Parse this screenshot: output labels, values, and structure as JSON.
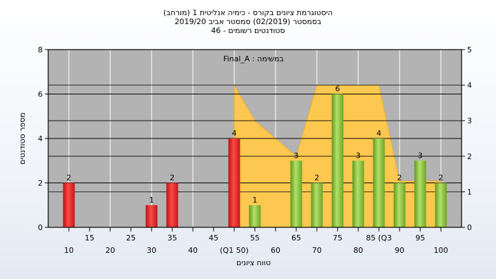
{
  "chart_data": {
    "type": "bar",
    "title_lines": [
      "היסטוגרמת ציונים בקורס - כימיה אנליטית 1 (מורחב)",
      "בסמסטר  (02/2019)  סמסטר אביב 2019/20",
      "סטודנטים רשומים - 46"
    ],
    "annotation": "במשימה : Final_A",
    "xlabel": "טווח ציונים",
    "ylabel": "מספר סטודנטים",
    "ylim": [
      0,
      8
    ],
    "y_ticks": [
      "0",
      "2",
      "4",
      "6",
      "8"
    ],
    "y2lim": [
      0,
      5
    ],
    "y2_ticks": [
      "0",
      "1",
      "2",
      "3",
      "4",
      "5"
    ],
    "x_ticks_lower": [
      "10",
      "20",
      "30",
      "40",
      "(Q1 50)",
      "60",
      "70",
      "80",
      "90",
      "100"
    ],
    "x_ticks_upper": [
      "15",
      "25",
      "35",
      "45",
      "55",
      "65",
      "75",
      "85 (Q3",
      "95"
    ],
    "bars": [
      {
        "x": 10,
        "value": 2,
        "label": "2",
        "color": "red"
      },
      {
        "x": 30,
        "value": 1,
        "label": "1",
        "color": "red"
      },
      {
        "x": 35,
        "value": 2,
        "label": "2",
        "color": "red"
      },
      {
        "x": 50,
        "value": 4,
        "label": "4",
        "color": "red"
      },
      {
        "x": 55,
        "value": 1,
        "label": "1",
        "color": "green"
      },
      {
        "x": 65,
        "value": 3,
        "label": "3",
        "color": "green"
      },
      {
        "x": 70,
        "value": 2,
        "label": "2",
        "color": "green"
      },
      {
        "x": 75,
        "value": 6,
        "label": "6",
        "color": "green"
      },
      {
        "x": 80,
        "value": 3,
        "label": "3",
        "color": "green"
      },
      {
        "x": 85,
        "value": 4,
        "label": "4",
        "color": "green"
      },
      {
        "x": 90,
        "value": 2,
        "label": "2",
        "color": "green"
      },
      {
        "x": 95,
        "value": 3,
        "label": "3",
        "color": "green"
      },
      {
        "x": 100,
        "value": 2,
        "label": "2",
        "color": "green"
      }
    ],
    "area_y2": [
      {
        "x": 50,
        "value": 4
      },
      {
        "x": 55,
        "value": 3
      },
      {
        "x": 65,
        "value": 2
      },
      {
        "x": 70,
        "value": 4
      },
      {
        "x": 75,
        "value": 4
      },
      {
        "x": 85,
        "value": 4
      },
      {
        "x": 90,
        "value": 1.3
      },
      {
        "x": 100,
        "value": 1.3
      }
    ],
    "colors": {
      "plot_bg": "#b3b3b3",
      "area": "#fdc84f",
      "red": "#e0282c",
      "green": "#8ec63f"
    }
  }
}
